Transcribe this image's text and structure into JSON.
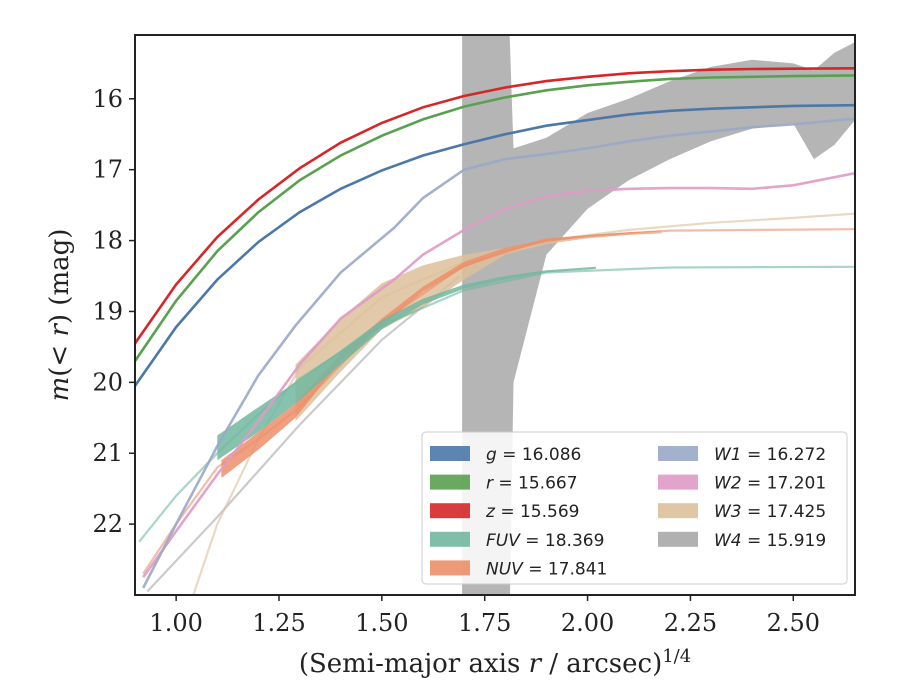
{
  "chart_data": {
    "type": "line",
    "xlabel": "(Semi-major axis r / arcsec)^{1/4}",
    "ylabel": "m(< r) (mag)",
    "xlim": [
      0.9,
      2.65
    ],
    "ylim": [
      23.0,
      15.1
    ],
    "y_inverted": true,
    "x_ticks": [
      "1.00",
      "1.25",
      "1.50",
      "1.75",
      "2.00",
      "2.25",
      "2.50"
    ],
    "y_ticks": [
      "16",
      "17",
      "18",
      "19",
      "20",
      "21",
      "22"
    ],
    "grid": false,
    "legend_position": "lower-right",
    "series": [
      {
        "name": "g = 16.086",
        "band": "g",
        "value": "16.086",
        "color": "#4c78a8",
        "kind": "line",
        "x": [
          0.9,
          1.0,
          1.1,
          1.2,
          1.3,
          1.4,
          1.5,
          1.6,
          1.7,
          1.8,
          1.9,
          2.0,
          2.1,
          2.2,
          2.3,
          2.4,
          2.5,
          2.65
        ],
        "y": [
          20.05,
          19.22,
          18.55,
          18.02,
          17.6,
          17.27,
          17.01,
          16.8,
          16.64,
          16.5,
          16.38,
          16.3,
          16.22,
          16.17,
          16.14,
          16.12,
          16.1,
          16.09
        ]
      },
      {
        "name": "r = 15.667",
        "band": "r",
        "value": "15.667",
        "color": "#59a14f",
        "kind": "line",
        "x": [
          0.9,
          1.0,
          1.1,
          1.2,
          1.3,
          1.4,
          1.5,
          1.6,
          1.7,
          1.8,
          1.9,
          2.0,
          2.1,
          2.2,
          2.3,
          2.4,
          2.5,
          2.65
        ],
        "y": [
          19.7,
          18.85,
          18.15,
          17.6,
          17.15,
          16.8,
          16.52,
          16.29,
          16.11,
          15.98,
          15.88,
          15.81,
          15.76,
          15.72,
          15.7,
          15.69,
          15.68,
          15.67
        ]
      },
      {
        "name": "z = 15.569",
        "band": "z",
        "value": "15.569",
        "color": "#d62728",
        "kind": "line",
        "x": [
          0.9,
          1.0,
          1.1,
          1.2,
          1.3,
          1.4,
          1.5,
          1.6,
          1.7,
          1.8,
          1.9,
          2.0,
          2.1,
          2.2,
          2.3,
          2.4,
          2.5,
          2.65
        ],
        "y": [
          19.45,
          18.62,
          17.95,
          17.42,
          16.98,
          16.62,
          16.34,
          16.12,
          15.96,
          15.84,
          15.75,
          15.69,
          15.64,
          15.61,
          15.59,
          15.58,
          15.575,
          15.57
        ]
      },
      {
        "name": "FUV = 18.369",
        "band": "FUV",
        "value": "18.369",
        "color": "#72b7a1",
        "kind": "band",
        "x": [
          1.1,
          1.2,
          1.29,
          1.4,
          1.5,
          1.6,
          1.7,
          1.8,
          1.9,
          2.02
        ],
        "y_lo": [
          20.75,
          20.35,
          20.0,
          19.55,
          19.12,
          18.82,
          18.62,
          18.5,
          18.42,
          18.37
        ],
        "y_hi": [
          21.1,
          20.7,
          20.3,
          19.75,
          19.25,
          18.9,
          18.68,
          18.55,
          18.45,
          18.4
        ],
        "ext_x": [
          0.91,
          1.0,
          1.1,
          1.2,
          1.3,
          1.5,
          1.7,
          1.9,
          2.2,
          2.65
        ],
        "ext_y": [
          22.25,
          21.6,
          21.0,
          20.45,
          19.95,
          19.2,
          18.7,
          18.45,
          18.38,
          18.37
        ]
      },
      {
        "name": "NUV = 17.841",
        "band": "NUV",
        "value": "17.841",
        "color": "#ec8f6a",
        "kind": "band",
        "x": [
          1.11,
          1.2,
          1.29,
          1.4,
          1.5,
          1.6,
          1.7,
          1.8,
          1.9,
          2.0,
          2.1,
          2.18
        ],
        "y_lo": [
          21.1,
          20.7,
          20.3,
          19.6,
          19.1,
          18.65,
          18.3,
          18.1,
          17.98,
          17.92,
          17.88,
          17.86
        ],
        "y_hi": [
          21.35,
          20.95,
          20.5,
          19.7,
          19.2,
          18.72,
          18.38,
          18.16,
          18.02,
          17.95,
          17.9,
          17.87
        ],
        "ext_x": [
          0.92,
          1.0,
          1.1,
          1.2,
          1.3,
          1.5,
          1.7,
          1.9,
          2.2,
          2.65
        ],
        "ext_y": [
          22.7,
          22.0,
          21.2,
          20.8,
          20.35,
          19.15,
          18.35,
          17.98,
          17.86,
          17.84
        ]
      },
      {
        "name": "W1 = 16.272",
        "band": "W1",
        "value": "16.272",
        "color": "#9aa8c8",
        "kind": "line",
        "x": [
          0.92,
          1.0,
          1.1,
          1.2,
          1.29,
          1.4,
          1.53,
          1.6,
          1.7,
          1.8,
          1.9,
          2.0,
          2.1,
          2.2,
          2.3,
          2.4,
          2.5,
          2.65
        ],
        "y": [
          22.9,
          22.0,
          20.9,
          19.9,
          19.2,
          18.45,
          17.82,
          17.4,
          17.0,
          16.85,
          16.78,
          16.7,
          16.6,
          16.52,
          16.46,
          16.4,
          16.36,
          16.28
        ]
      },
      {
        "name": "W2 = 17.201",
        "band": "W2",
        "value": "17.201",
        "color": "#e09ac6",
        "kind": "line",
        "x": [
          0.92,
          1.0,
          1.1,
          1.2,
          1.3,
          1.4,
          1.53,
          1.6,
          1.7,
          1.8,
          1.9,
          2.0,
          2.1,
          2.2,
          2.3,
          2.4,
          2.5,
          2.65
        ],
        "y": [
          22.75,
          22.1,
          21.3,
          20.55,
          19.75,
          19.1,
          18.55,
          18.2,
          17.85,
          17.55,
          17.38,
          17.3,
          17.27,
          17.26,
          17.26,
          17.27,
          17.22,
          17.05
        ]
      },
      {
        "name": "W3 = 17.425",
        "band": "W3",
        "value": "17.425",
        "color": "#dcc09a",
        "kind": "band",
        "x": [
          1.29,
          1.4,
          1.5,
          1.6,
          1.7,
          1.8,
          1.9,
          2.0,
          2.1,
          2.18
        ],
        "y_lo": [
          19.75,
          19.1,
          18.6,
          18.35,
          18.2,
          18.1,
          18.0,
          17.95,
          17.9,
          17.88
        ],
        "y_hi": [
          20.55,
          19.85,
          19.25,
          18.95,
          18.55,
          18.2,
          18.05,
          17.97,
          17.92,
          17.9
        ],
        "ext_x": [
          1.03,
          1.1,
          1.2,
          1.3,
          1.5,
          1.7,
          1.9,
          2.1,
          2.3,
          2.5,
          2.65
        ],
        "ext_y": [
          23.2,
          22.0,
          20.8,
          19.8,
          18.8,
          18.3,
          18.0,
          17.85,
          17.75,
          17.68,
          17.62
        ]
      },
      {
        "name": "W4 = 15.919",
        "band": "W4",
        "value": "15.919",
        "color": "#a8a8a8",
        "kind": "band",
        "x": [
          1.695,
          1.81,
          1.82,
          1.9,
          2.0,
          2.1,
          2.2,
          2.3,
          2.4,
          2.5,
          2.55,
          2.6,
          2.65
        ],
        "y_hi": [
          23.5,
          23.5,
          20.0,
          18.2,
          17.55,
          17.15,
          16.85,
          16.6,
          16.42,
          16.35,
          16.85,
          16.65,
          16.3
        ],
        "y_lo": [
          15.0,
          15.0,
          16.7,
          16.55,
          16.2,
          16.0,
          15.75,
          15.55,
          15.45,
          15.5,
          15.6,
          15.35,
          15.2
        ],
        "ext_x": [
          0.93,
          1.1,
          1.3,
          1.5,
          1.69
        ],
        "ext_y": [
          22.95,
          21.9,
          20.6,
          19.4,
          18.5
        ]
      }
    ]
  }
}
